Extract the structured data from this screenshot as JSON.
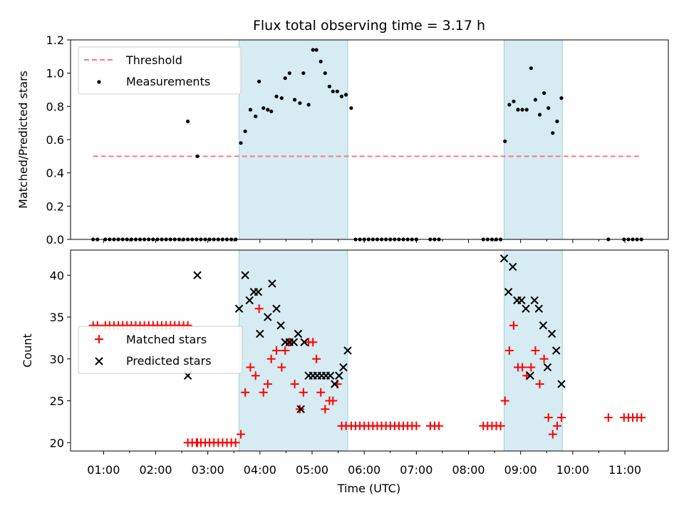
{
  "figure_title": "Flux total observing time = 3.17 h",
  "chart_data": [
    {
      "type": "scatter",
      "ylabel": "Matched/Predicted stars",
      "xlabel": "",
      "xlim": [
        "00:22",
        "11:50"
      ],
      "ylim": [
        0,
        1.2
      ],
      "yticks": [
        0.0,
        0.2,
        0.4,
        0.6,
        0.8,
        1.0,
        1.2
      ],
      "ytick_labels": [
        "0.0",
        "0.2",
        "0.4",
        "0.6",
        "0.8",
        "1.0",
        "1.2"
      ],
      "legend": {
        "placement": "top-left",
        "entries": [
          "Threshold",
          "Measurements"
        ]
      },
      "shaded_intervals": [
        [
          "03:36",
          "05:41"
        ],
        [
          "08:41",
          "09:48"
        ]
      ],
      "threshold": {
        "name": "Threshold",
        "value": 0.5,
        "x_range": [
          "00:48",
          "11:16"
        ],
        "color": "#f08080",
        "style": "dashed"
      },
      "series": [
        {
          "name": "Measurements",
          "color": "#000000",
          "marker": "dot",
          "x": [
            "00:48",
            "00:53",
            "01:02",
            "01:07",
            "01:12",
            "01:17",
            "01:22",
            "01:27",
            "01:32",
            "01:37",
            "01:42",
            "01:47",
            "01:52",
            "01:57",
            "02:02",
            "02:07",
            "02:12",
            "02:17",
            "02:22",
            "02:27",
            "02:32",
            "02:37",
            "02:42",
            "02:47",
            "02:52",
            "02:57",
            "03:02",
            "03:07",
            "03:12",
            "03:17",
            "03:22",
            "03:27",
            "03:32",
            "02:37",
            "02:48",
            "03:38",
            "03:43",
            "03:49",
            "03:55",
            "03:59",
            "04:04",
            "04:09",
            "04:13",
            "04:19",
            "04:25",
            "04:29",
            "04:34",
            "04:40",
            "04:46",
            "04:50",
            "04:56",
            "05:01",
            "05:05",
            "05:10",
            "05:15",
            "05:20",
            "05:24",
            "05:29",
            "05:34",
            "05:39",
            "05:45",
            "05:50",
            "05:55",
            "06:00",
            "06:05",
            "06:10",
            "06:15",
            "06:20",
            "06:25",
            "06:30",
            "06:35",
            "06:40",
            "06:45",
            "06:50",
            "06:55",
            "07:00",
            "07:16",
            "07:21",
            "07:26",
            "08:17",
            "08:22",
            "08:27",
            "08:32",
            "08:37",
            "08:42",
            "08:47",
            "08:52",
            "08:57",
            "09:02",
            "09:07",
            "09:12",
            "09:17",
            "09:22",
            "09:27",
            "09:32",
            "09:37",
            "09:42",
            "09:47",
            "10:41",
            "10:59",
            "11:04",
            "11:09",
            "11:14",
            "11:19"
          ],
          "y": [
            0,
            0,
            0,
            0,
            0,
            0,
            0,
            0,
            0,
            0,
            0,
            0,
            0,
            0,
            0,
            0,
            0,
            0,
            0,
            0,
            0,
            0,
            0,
            0,
            0,
            0,
            0,
            0,
            0,
            0,
            0,
            0,
            0,
            0.71,
            0.5,
            0.58,
            0.65,
            0.78,
            0.74,
            0.95,
            0.79,
            0.78,
            0.77,
            0.86,
            0.85,
            0.97,
            1.0,
            0.84,
            0.82,
            1.0,
            0.81,
            1.14,
            1.14,
            1.07,
            1.0,
            0.92,
            0.89,
            0.89,
            0.86,
            0.87,
            0.79,
            0,
            0,
            0,
            0,
            0,
            0,
            0,
            0,
            0,
            0,
            0,
            0,
            0,
            0,
            0,
            0,
            0,
            0,
            0,
            0,
            0,
            0,
            0,
            0.59,
            0.81,
            0.83,
            0.78,
            0.78,
            0.78,
            1.03,
            0.84,
            0.75,
            0.88,
            0.79,
            0.64,
            0.71,
            0.85,
            0,
            0,
            0,
            0,
            0,
            0
          ]
        }
      ]
    },
    {
      "type": "scatter",
      "ylabel": "Count",
      "xlabel": "Time (UTC)",
      "xlim": [
        "00:22",
        "11:50"
      ],
      "ylim": [
        19,
        43
      ],
      "yticks": [
        20,
        25,
        30,
        35,
        40
      ],
      "ytick_labels": [
        "20",
        "25",
        "30",
        "35",
        "40"
      ],
      "xticks": [
        "01:00",
        "02:00",
        "03:00",
        "04:00",
        "05:00",
        "06:00",
        "07:00",
        "08:00",
        "09:00",
        "10:00",
        "11:00"
      ],
      "legend": {
        "placement": "center-left",
        "entries": [
          "Matched stars",
          "Predicted stars"
        ]
      },
      "shaded_intervals": [
        [
          "03:36",
          "05:41"
        ],
        [
          "08:41",
          "09:48"
        ]
      ],
      "series": [
        {
          "name": "Matched stars",
          "color": "#ff0000",
          "marker": "plus",
          "x": [
            "00:48",
            "00:53",
            "01:02",
            "01:07",
            "01:12",
            "01:17",
            "01:22",
            "01:27",
            "01:32",
            "01:37",
            "01:42",
            "01:47",
            "01:52",
            "01:57",
            "02:02",
            "02:07",
            "02:12",
            "02:17",
            "02:22",
            "02:27",
            "02:32",
            "02:37",
            "02:42",
            "02:47",
            "02:52",
            "02:57",
            "03:02",
            "03:07",
            "03:12",
            "03:17",
            "03:22",
            "03:27",
            "03:32",
            "02:37",
            "02:48",
            "03:38",
            "03:43",
            "03:49",
            "03:55",
            "03:59",
            "04:04",
            "04:09",
            "04:13",
            "04:19",
            "04:25",
            "04:29",
            "04:34",
            "04:40",
            "04:46",
            "04:50",
            "04:56",
            "05:01",
            "05:05",
            "05:10",
            "05:15",
            "05:20",
            "05:24",
            "05:29",
            "05:34",
            "05:39",
            "05:45",
            "05:50",
            "05:55",
            "06:00",
            "06:05",
            "06:10",
            "06:15",
            "06:20",
            "06:25",
            "06:30",
            "06:35",
            "06:40",
            "06:45",
            "06:50",
            "06:55",
            "07:00",
            "07:16",
            "07:21",
            "07:26",
            "08:17",
            "08:22",
            "08:27",
            "08:32",
            "08:37",
            "08:42",
            "08:47",
            "08:52",
            "08:57",
            "09:02",
            "09:07",
            "09:12",
            "09:17",
            "09:22",
            "09:27",
            "09:32",
            "09:37",
            "09:42",
            "09:47",
            "10:41",
            "10:59",
            "11:04",
            "11:09",
            "11:14",
            "11:19"
          ],
          "y": [
            34,
            34,
            34,
            34,
            34,
            34,
            34,
            34,
            34,
            34,
            34,
            34,
            34,
            34,
            34,
            34,
            34,
            34,
            34,
            34,
            34,
            34,
            20,
            20,
            20,
            20,
            20,
            20,
            20,
            20,
            20,
            20,
            20,
            20,
            20,
            21,
            26,
            29,
            28,
            36,
            26,
            27,
            30,
            31,
            29,
            31,
            32,
            27,
            24,
            26,
            32,
            32,
            30,
            26,
            24,
            25,
            25,
            27,
            22,
            22,
            22,
            22,
            22,
            22,
            22,
            22,
            22,
            22,
            22,
            22,
            22,
            22,
            22,
            22,
            22,
            22,
            22,
            22,
            22,
            22,
            22,
            22,
            22,
            22,
            25,
            31,
            34,
            29,
            29,
            28,
            29,
            31,
            27,
            30,
            23,
            21,
            22,
            23,
            23,
            23,
            23,
            23,
            23,
            23
          ]
        },
        {
          "name": "Predicted stars",
          "color": "#000000",
          "marker": "x",
          "x": [
            "02:37",
            "02:48",
            "03:36",
            "03:43",
            "03:48",
            "03:53",
            "03:58",
            "04:00",
            "04:09",
            "04:14",
            "04:19",
            "04:24",
            "04:29",
            "04:34",
            "04:39",
            "04:44",
            "04:47",
            "04:51",
            "04:56",
            "05:01",
            "05:06",
            "05:11",
            "05:16",
            "05:21",
            "05:26",
            "05:31",
            "05:36",
            "05:41",
            "08:41",
            "08:46",
            "08:51",
            "08:56",
            "09:01",
            "09:06",
            "09:11",
            "09:16",
            "09:21",
            "09:26",
            "09:31",
            "09:36",
            "09:41",
            "09:47"
          ],
          "y": [
            28,
            40,
            36,
            40,
            37,
            38,
            38,
            33,
            35,
            39,
            36,
            34,
            32,
            32,
            32,
            33,
            24,
            32,
            28,
            28,
            28,
            28,
            28,
            28,
            27,
            28,
            29,
            31,
            42,
            38,
            41,
            37,
            37,
            36,
            28,
            37,
            36,
            34,
            29,
            33,
            31,
            27
          ]
        }
      ]
    }
  ]
}
